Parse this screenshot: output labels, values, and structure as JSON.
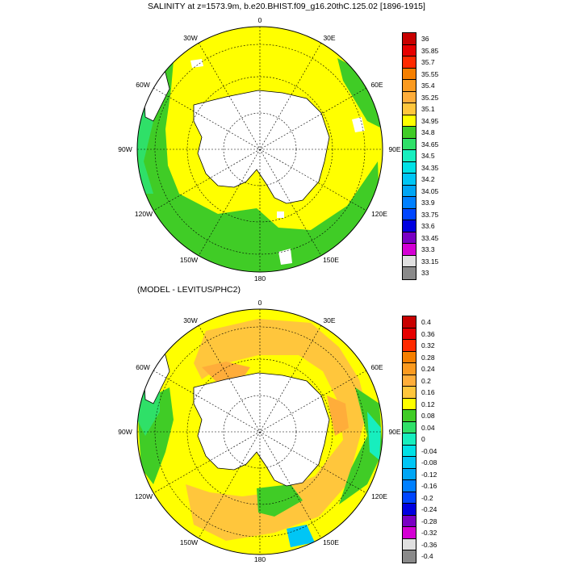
{
  "panels": [
    {
      "title": "SALINITY at z=1573.9m, b.e20.BHIST.f09_g16.20thC.125.02 [1896-1915]",
      "lon_labels": [
        "0",
        "30E",
        "60E",
        "90E",
        "120E",
        "150E",
        "180",
        "150W",
        "120W",
        "90W",
        "60W",
        "30W"
      ],
      "colorbar": {
        "levels": [
          "36",
          "35.85",
          "35.7",
          "35.55",
          "35.4",
          "35.25",
          "35.1",
          "34.95",
          "34.8",
          "34.65",
          "34.5",
          "34.35",
          "34.2",
          "34.05",
          "33.9",
          "33.75",
          "33.6",
          "33.45",
          "33.3",
          "33.15",
          "33"
        ],
        "colors": [
          "#c80000",
          "#e60000",
          "#ff2a00",
          "#f57f00",
          "#fb9a1f",
          "#ffad3a",
          "#ffc63c",
          "#ffff00",
          "#40cc26",
          "#2fe068",
          "#17eebe",
          "#00e1e6",
          "#00c6f5",
          "#00a6f5",
          "#0080ff",
          "#0046ff",
          "#0000e0",
          "#7a00c4",
          "#d400d4",
          "#e0e0e0",
          "#8a8a8a"
        ]
      }
    },
    {
      "title": "(MODEL - LEVITUS/PHC2)",
      "lon_labels": [
        "0",
        "30E",
        "60E",
        "90E",
        "120E",
        "150E",
        "180",
        "150W",
        "120W",
        "90W",
        "60W",
        "30W"
      ],
      "colorbar": {
        "levels": [
          "0.4",
          "0.36",
          "0.32",
          "0.28",
          "0.24",
          "0.2",
          "0.16",
          "0.12",
          "0.08",
          "0.04",
          "0",
          "-0.04",
          "-0.08",
          "-0.12",
          "-0.16",
          "-0.2",
          "-0.24",
          "-0.28",
          "-0.32",
          "-0.36",
          "-0.4"
        ],
        "colors": [
          "#c80000",
          "#e60000",
          "#ff2a00",
          "#f57f00",
          "#fb9a1f",
          "#ffad3a",
          "#ffc63c",
          "#ffff00",
          "#40cc26",
          "#2fe068",
          "#17eebe",
          "#00e1e6",
          "#00c6f5",
          "#00a6f5",
          "#0080ff",
          "#0046ff",
          "#0000e0",
          "#7a00c4",
          "#d400d4",
          "#e0e0e0",
          "#8a8a8a"
        ]
      }
    }
  ]
}
